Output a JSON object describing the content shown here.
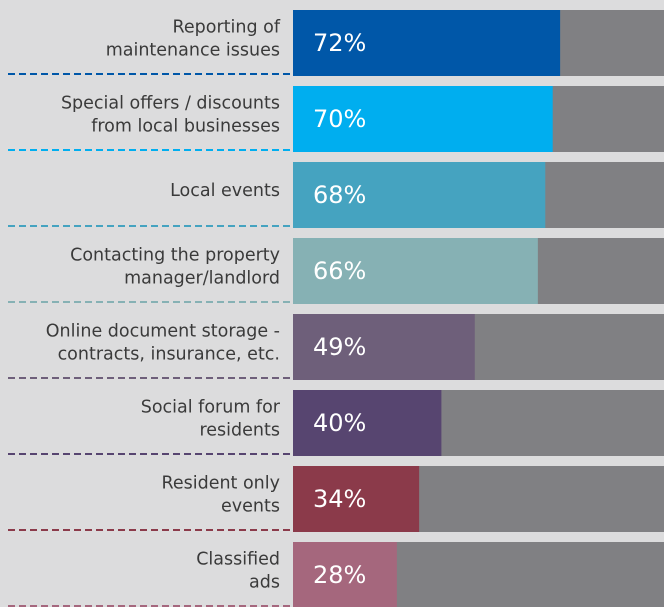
{
  "chart_data": {
    "type": "bar",
    "orientation": "horizontal",
    "categories": [
      [
        "Reporting of",
        "maintenance issues"
      ],
      [
        "Special offers / discounts",
        "from local businesses"
      ],
      [
        "Local events"
      ],
      [
        "Contacting the property",
        "manager/landlord"
      ],
      [
        "Online document storage -",
        "contracts, insurance, etc."
      ],
      [
        "Social forum for",
        "residents"
      ],
      [
        "Resident only",
        "events"
      ],
      [
        "Classified",
        "ads"
      ]
    ],
    "values": [
      72,
      70,
      68,
      66,
      49,
      40,
      34,
      28
    ],
    "value_labels": [
      "72%",
      "70%",
      "68%",
      "66%",
      "49%",
      "40%",
      "34%",
      "28%"
    ],
    "colors": [
      "#0057a8",
      "#00aeef",
      "#45a3c0",
      "#86b1b4",
      "#6e5f7a",
      "#574570",
      "#8b3a4a",
      "#a5677d"
    ],
    "track_color": "#808083",
    "xlim": [
      0,
      100
    ]
  }
}
